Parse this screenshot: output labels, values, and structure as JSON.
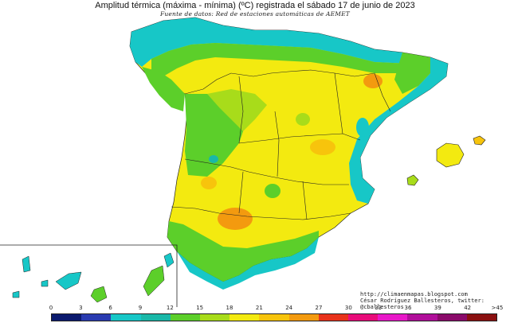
{
  "title": "Amplitud térmica (máxima - mínima) (ºC) registrada el sábado 17 de junio de 2023",
  "subtitle": "Fuente de datos: Red de estaciones automáticas de AEMET",
  "credits": {
    "url": "http://climaenmapas.blogspot.com",
    "author": "César Rodríguez Ballesteros, twitter: @cballesteros"
  },
  "legend": {
    "ticks": [
      "0",
      "3",
      "6",
      "9",
      "12",
      "15",
      "18",
      "21",
      "24",
      "27",
      "30",
      "33",
      "36",
      "39",
      "42",
      ">45"
    ],
    "colors": [
      "#0b1a6e",
      "#2a3bb0",
      "#17c7c7",
      "#19b8a8",
      "#5ccf2a",
      "#a8dc1a",
      "#f3ea10",
      "#f7c40c",
      "#f39a0f",
      "#e8321b",
      "#e80c7a",
      "#e818c8",
      "#b00f9a",
      "#8a0a6a",
      "#8a1010"
    ]
  },
  "map_colors": {
    "sea": "#ffffff",
    "border": "#222222",
    "cold_coast": "#17c7c7",
    "green": "#5ccf2a",
    "light_green": "#a8dc1a",
    "yellow": "#f3ea10",
    "orange": "#f7c40c",
    "dark_orange": "#f39a0f",
    "navy": "#2a3bb0"
  }
}
